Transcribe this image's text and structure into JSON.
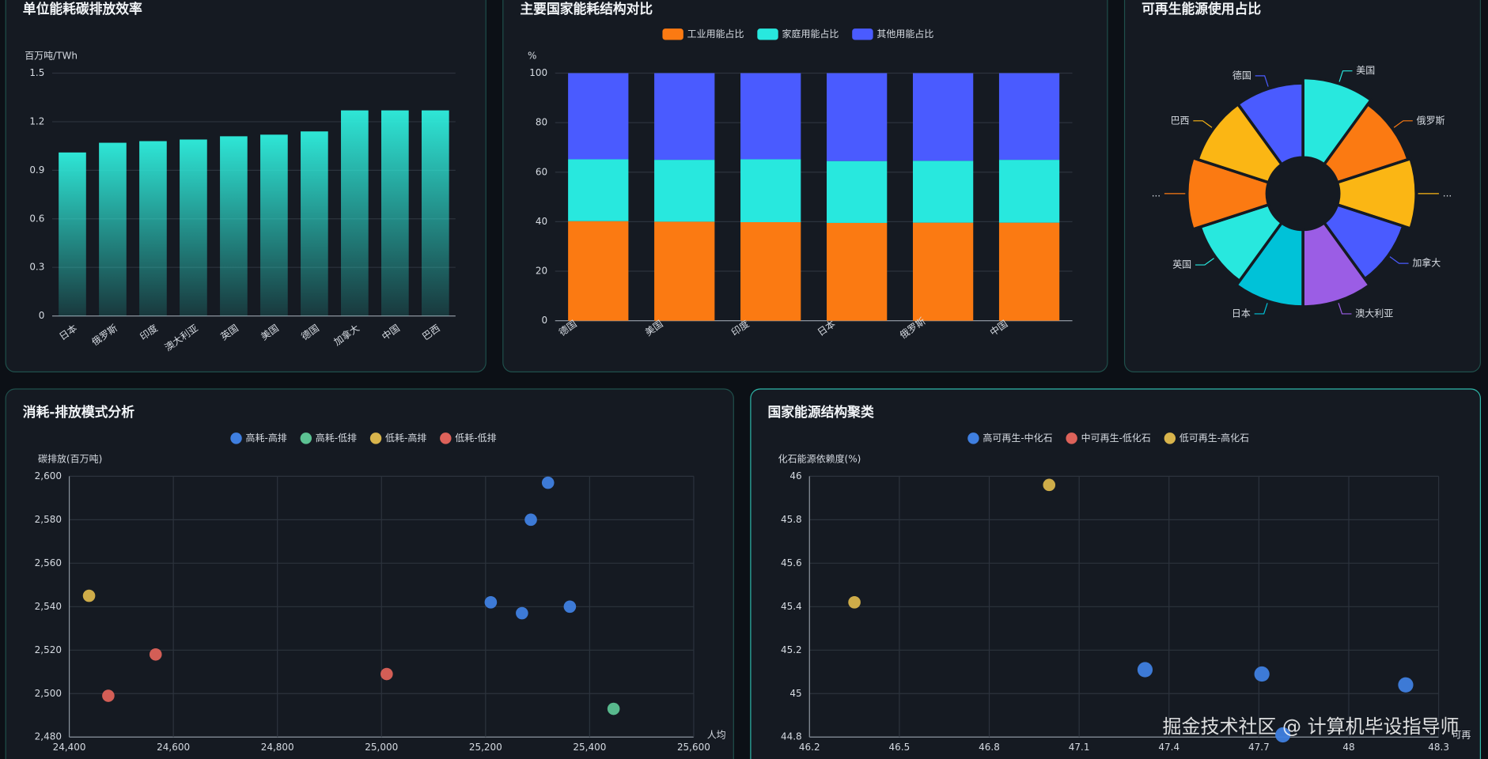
{
  "chart_data": [
    {
      "type": "bar",
      "title": "单位能耗碳排放效率",
      "y_label": "百万吨/TWh",
      "color": "#2ee6d6",
      "grid": true,
      "categories": [
        "日本",
        "俄罗斯",
        "印度",
        "澳大利亚",
        "英国",
        "美国",
        "德国",
        "加拿大",
        "中国",
        "巴西"
      ],
      "values": [
        1.01,
        1.07,
        1.08,
        1.09,
        1.11,
        1.12,
        1.14,
        1.27,
        1.27,
        1.27
      ],
      "ylim": [
        0,
        1.5
      ],
      "yticks": [
        0,
        0.3,
        0.6,
        0.9,
        1.2,
        1.5
      ]
    },
    {
      "type": "stacked_bar",
      "title": "主要国家能耗结构对比",
      "y_label": "%",
      "grid": true,
      "legend": "top",
      "categories": [
        "德国",
        "美国",
        "印度",
        "日本",
        "俄罗斯",
        "中国"
      ],
      "series": [
        {
          "name": "工业用能占比",
          "color": "#fb7a12",
          "values": [
            40.2,
            40,
            39.8,
            39.5,
            39.6,
            39.6
          ]
        },
        {
          "name": "家庭用能占比",
          "color": "#28e8de",
          "values": [
            25,
            25,
            25.4,
            25,
            25,
            25.4
          ]
        },
        {
          "name": "其他用能占比",
          "color": "#4a5bff",
          "values": [
            34.8,
            35,
            34.8,
            35.5,
            35.4,
            35
          ]
        }
      ],
      "ylim": [
        0,
        100
      ],
      "yticks": [
        0,
        20,
        40,
        60,
        80,
        100
      ]
    },
    {
      "type": "pie",
      "title": "可再生能源使用占比",
      "rose": "area",
      "categories": [
        "美国",
        "俄罗斯",
        "...",
        "加拿大",
        "澳大利亚",
        "日本",
        "英国",
        "...",
        "巴西",
        "德国"
      ],
      "values": [
        31,
        29,
        30,
        27,
        30,
        30,
        28,
        31,
        29,
        29
      ],
      "colors": [
        "#28e8de",
        "#fb7a12",
        "#fbb614",
        "#4a5bff",
        "#9b5de5",
        "#00c2d8",
        "#28e8de",
        "#fb7a12",
        "#fbb614",
        "#4a5bff"
      ]
    },
    {
      "type": "scatter",
      "title": "消耗-排放模式分析",
      "y_label": "碳排放(百万吨)",
      "x_label": "人均",
      "grid": true,
      "legend": "top",
      "series": [
        {
          "name": "高耗-高排",
          "color": "#3f7fe0",
          "x": [
            25320,
            25287,
            25210,
            25270,
            25362
          ],
          "values": [
            2597,
            2580,
            2542,
            2537,
            2540
          ]
        },
        {
          "name": "高耗-低排",
          "color": "#5cc293",
          "x": [
            25446
          ],
          "values": [
            2493
          ]
        },
        {
          "name": "低耗-高排",
          "color": "#d8b44c",
          "x": [
            24438
          ],
          "values": [
            2545
          ]
        },
        {
          "name": "低耗-低排",
          "color": "#dd625a",
          "x": [
            24566,
            24475,
            25010
          ],
          "values": [
            2518,
            2499,
            2509
          ]
        }
      ],
      "xlim": [
        24400,
        25600
      ],
      "xticks": [
        {
          "value": 24400,
          "label": "24,400"
        },
        {
          "value": 24600,
          "label": "24,600"
        },
        {
          "value": 24800,
          "label": "24,800"
        },
        {
          "value": 25000,
          "label": "25,000"
        },
        {
          "value": 25200,
          "label": "25,200"
        },
        {
          "value": 25400,
          "label": "25,400"
        },
        {
          "value": 25600,
          "label": "25,600"
        }
      ],
      "ylim": [
        2480,
        2600
      ],
      "yticks": [
        {
          "value": 2480,
          "label": "2,480"
        },
        {
          "value": 2500,
          "label": "2,500"
        },
        {
          "value": 2520,
          "label": "2,520"
        },
        {
          "value": 2540,
          "label": "2,540"
        },
        {
          "value": 2560,
          "label": "2,560"
        },
        {
          "value": 2580,
          "label": "2,580"
        },
        {
          "value": 2600,
          "label": "2,600"
        }
      ]
    },
    {
      "type": "scatter",
      "title": "国家能源结构聚类",
      "y_label": "化石能源依赖度(%)",
      "x_label": "可再",
      "grid": true,
      "legend": "top",
      "series": [
        {
          "name": "高可再生-中化石",
          "color": "#3f7fe0",
          "x": [
            47.32,
            47.71,
            48.19,
            47.78
          ],
          "values": [
            45.11,
            45.09,
            45.04,
            44.81
          ]
        },
        {
          "name": "中可再生-低化石",
          "color": "#dd625a",
          "x": [],
          "values": []
        },
        {
          "name": "低可再生-高化石",
          "color": "#d8b44c",
          "x": [
            47.0,
            46.35
          ],
          "values": [
            45.96,
            45.42
          ]
        }
      ],
      "xlim": [
        46.2,
        48.3
      ],
      "xticks": [
        46.2,
        46.5,
        46.8,
        47.1,
        47.4,
        47.7,
        48,
        48.3
      ],
      "ylim": [
        44.8,
        46
      ],
      "yticks": [
        44.8,
        45,
        45.2,
        45.4,
        45.6,
        45.8,
        46
      ]
    }
  ],
  "watermark": "掘金技术社区 @ 计算机毕设指导师"
}
